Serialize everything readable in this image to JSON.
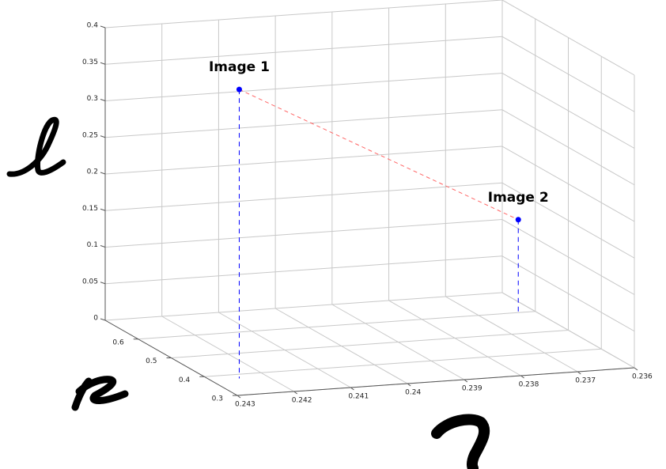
{
  "chart_data": {
    "type": "scatter3d",
    "x": [
      0.2425,
      0.2363
    ],
    "y": [
      0.38,
      0.6
    ],
    "z": [
      0.395,
      0.127
    ],
    "point_labels": [
      "Image 1",
      "Image 2"
    ],
    "color": "#0000ff",
    "line_color": "#ff6666",
    "xlim": [
      0.243,
      0.236
    ],
    "xticks": [
      0.243,
      0.242,
      0.241,
      0.24,
      0.239,
      0.238,
      0.237,
      0.236
    ],
    "ylim": [
      0.3,
      0.7
    ],
    "yticks": [
      0.3,
      0.4,
      0.5,
      0.6
    ],
    "zlim": [
      0,
      0.4
    ],
    "zticks": [
      0,
      0.05,
      0.1,
      0.15,
      0.2,
      0.25,
      0.3,
      0.35,
      0.4
    ],
    "grid": true
  }
}
